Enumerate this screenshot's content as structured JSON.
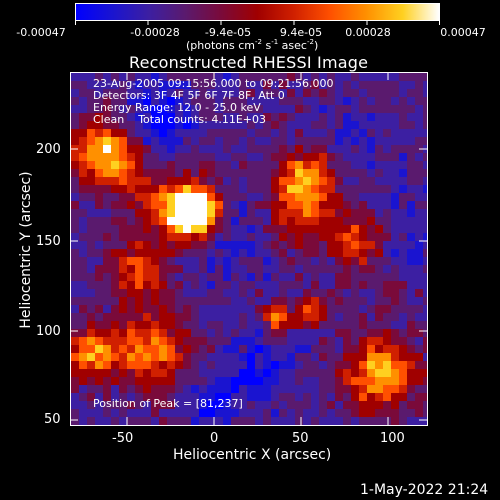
{
  "colorbar": {
    "ticks": [
      "-0.00047",
      "-0.00028",
      "-9.4e-05",
      "9.4e-05",
      "0.00028",
      "0.00047"
    ],
    "units_main": "(photons cm",
    "units_exp1": "-2",
    "units_mid1": " s",
    "units_exp2": "-1",
    "units_mid2": " asec",
    "units_exp3": "-2",
    "units_end": ")",
    "colors": [
      "#0000ff",
      "#1a14d0",
      "#3c1fa2",
      "#5a1a6e",
      "#7a0a3a",
      "#a00000",
      "#d02000",
      "#ff5000",
      "#ff9000",
      "#ffd020",
      "#ffffff"
    ]
  },
  "title": "Reconstructed RHESSI Image",
  "annotations": {
    "line1": "23-Aug-2005 09:15:56.000 to 09:21:56.000",
    "line2": "Detectors: 3F 4F 5F 6F 7F 8F, Att 0",
    "line3": "Energy Range: 12.0 - 25.0 keV",
    "line4": "Clean    Total counts: 4.11E+03",
    "peak": "Position of Peak = [81,237]"
  },
  "axes": {
    "xlabel": "Heliocentric X (arcsec)",
    "ylabel": "Heliocentric Y (arcsec)",
    "x_ticks": [
      "-50",
      "0",
      "50",
      "100"
    ],
    "y_ticks": [
      "200",
      "150",
      "100",
      "50"
    ]
  },
  "footer_date": "1-May-2022 21:24"
}
